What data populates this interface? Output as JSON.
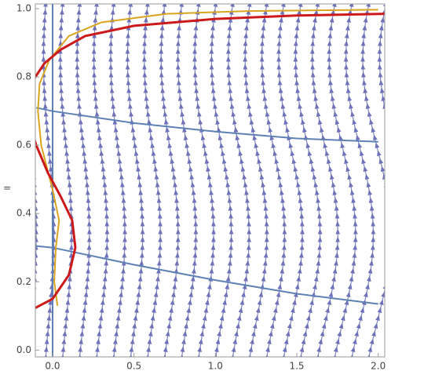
{
  "chart_data": {
    "type": "streamplot",
    "ylabel": "=",
    "xlim": [
      -0.106,
      2.04
    ],
    "ylim": [
      -0.02,
      1.014
    ],
    "xticks": [
      {
        "value": 0,
        "label": "0.0"
      },
      {
        "value": 0.5,
        "label": "0.5"
      },
      {
        "value": 1,
        "label": "1.0"
      },
      {
        "value": 1.5,
        "label": "1.5"
      },
      {
        "value": 2,
        "label": "2.0"
      }
    ],
    "yticks": [
      {
        "value": 0,
        "label": "0.0"
      },
      {
        "value": 0.2,
        "label": "0.2"
      },
      {
        "value": 0.4,
        "label": "0.4"
      },
      {
        "value": 0.6,
        "label": "0.6"
      },
      {
        "value": 0.8,
        "label": "0.8"
      },
      {
        "value": 1,
        "label": "1.0"
      }
    ],
    "stream_color": "#6e72b8",
    "series": [
      {
        "color": "#5e81b5",
        "x": [
          0,
          0
        ],
        "y": [
          -0.02,
          1.014
        ]
      },
      {
        "color": "#5e81b5",
        "x": [
          -0.1,
          0,
          0.5,
          1,
          1.5,
          2
        ],
        "y": [
          0.71,
          0.7,
          0.665,
          0.64,
          0.62,
          0.61
        ]
      },
      {
        "color": "#5e81b5",
        "x": [
          -0.1,
          0,
          0.5,
          1,
          1.5,
          2
        ],
        "y": [
          0.305,
          0.3,
          0.25,
          0.205,
          0.165,
          0.135
        ]
      },
      {
        "color": "#d9a521",
        "x": [
          0.03,
          0.01,
          0.02,
          0.04,
          0,
          -0.07,
          -0.09,
          -0.08,
          -0.02,
          0.1,
          0.3,
          0.7,
          1.2,
          2
        ],
        "y": [
          0.13,
          0.2,
          0.3,
          0.38,
          0.47,
          0.6,
          0.7,
          0.78,
          0.85,
          0.92,
          0.96,
          0.985,
          0.993,
          0.997
        ]
      },
      {
        "color": "#cc1a1a",
        "x": [
          -0.12,
          0,
          0.1,
          0.14,
          0.12,
          0.05,
          -0.03,
          -0.1,
          -0.12,
          null,
          -0.12,
          -0.05,
          0.05,
          0.2,
          0.5,
          1,
          1.5,
          2.04
        ],
        "y": [
          0.12,
          0.15,
          0.22,
          0.3,
          0.38,
          0.45,
          0.52,
          0.6,
          0.63,
          null,
          0.79,
          0.84,
          0.88,
          0.92,
          0.95,
          0.97,
          0.98,
          0.985
        ]
      }
    ]
  }
}
